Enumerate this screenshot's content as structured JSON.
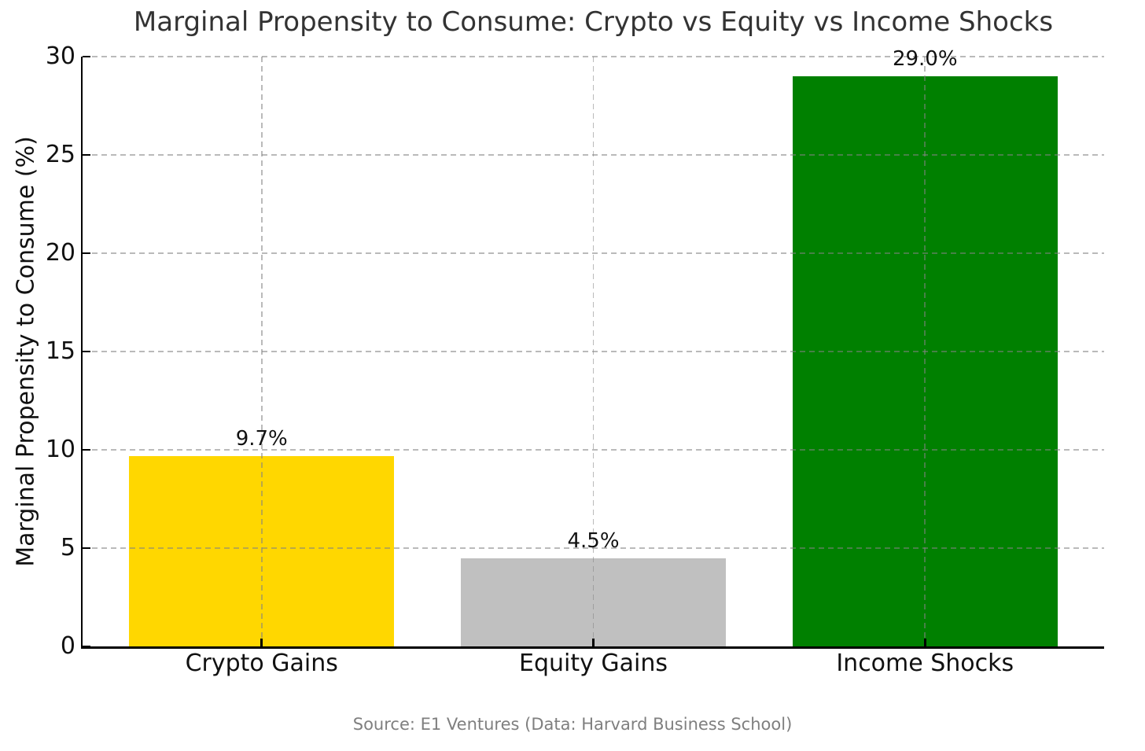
{
  "source_note": "Source: E1 Ventures (Data: Harvard Business School)",
  "chart_data": {
    "type": "bar",
    "title": "Marginal Propensity to Consume: Crypto vs Equity vs Income Shocks",
    "categories": [
      "Crypto Gains",
      "Equity Gains",
      "Income Shocks"
    ],
    "values": [
      9.7,
      4.5,
      29.0
    ],
    "bar_labels": [
      "9.7%",
      "4.5%",
      "29.0%"
    ],
    "bar_colors": [
      "#FFD700",
      "#C0C0C0",
      "#008000"
    ],
    "xlabel": "",
    "ylabel": "Marginal Propensity to Consume (%)",
    "ylim": [
      0,
      30
    ],
    "yticks": [
      0,
      5,
      10,
      15,
      20,
      25,
      30
    ],
    "grid": "dashed gray, horizontal at y-ticks and vertical at category centers, drawn over bars",
    "legend": "none"
  },
  "colors": {
    "background": "#ffffff",
    "title_text": "#333333",
    "tick_text": "#111111",
    "spine": "#000000",
    "grid": "#b0b0b0",
    "source_text": "#7f7f7f"
  }
}
